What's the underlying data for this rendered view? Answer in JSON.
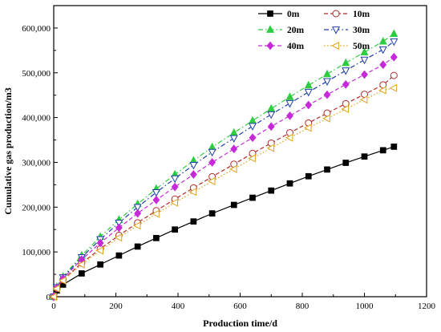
{
  "chart_data": {
    "type": "line",
    "title": "",
    "xlabel": "Production time/d",
    "ylabel": "Cumulative gas production/m3",
    "xlim": [
      0,
      1200
    ],
    "ylim": [
      0,
      650000
    ],
    "xticks": [
      "0",
      "200",
      "400",
      "600",
      "800",
      "1000",
      "1200"
    ],
    "yticks": [
      "0",
      "100,000",
      "200,000",
      "300,000",
      "400,000",
      "500,000",
      "600,000"
    ],
    "grid": false,
    "legend_position": "top-right",
    "x": [
      0,
      10,
      30,
      90,
      150,
      210,
      270,
      330,
      390,
      450,
      510,
      580,
      640,
      700,
      760,
      820,
      880,
      940,
      1000,
      1060,
      1095
    ],
    "series": [
      {
        "name": "0m",
        "color": "#000000",
        "marker": "filled-square",
        "line_style": "solid",
        "values": [
          0,
          14000,
          27000,
          52000,
          72000,
          92000,
          112000,
          131000,
          150000,
          168000,
          186000,
          205000,
          221000,
          237000,
          253000,
          269000,
          284000,
          299000,
          313000,
          327000,
          335000
        ]
      },
      {
        "name": "10m",
        "color": "#b22a2a",
        "marker": "open-circle",
        "line_style": "dashed",
        "values": [
          0,
          19000,
          38000,
          75000,
          107000,
          137000,
          165000,
          192000,
          218000,
          243000,
          268000,
          296000,
          320000,
          343000,
          366000,
          388000,
          410000,
          431000,
          452000,
          473000,
          494000
        ]
      },
      {
        "name": "20m",
        "color": "#2ecc40",
        "marker": "filled-triangle-up",
        "line_style": "dash-dot",
        "values": [
          0,
          22000,
          45000,
          92000,
          134000,
          172000,
          207000,
          241000,
          273000,
          304000,
          334000,
          366000,
          393000,
          420000,
          446000,
          472000,
          497000,
          522000,
          546000,
          570000,
          587000
        ]
      },
      {
        "name": "30m",
        "color": "#1f3fa8",
        "marker": "open-triangle-down",
        "line_style": "dash-dot",
        "values": [
          0,
          21000,
          43000,
          88000,
          128000,
          165000,
          200000,
          233000,
          264000,
          294000,
          323000,
          354000,
          381000,
          407000,
          432000,
          457000,
          481000,
          505000,
          529000,
          552000,
          570000
        ]
      },
      {
        "name": "40m",
        "color": "#c62ad8",
        "marker": "filled-diamond",
        "line_style": "dashed",
        "values": [
          0,
          20000,
          41000,
          83000,
          120000,
          154000,
          186000,
          216000,
          245000,
          273000,
          300000,
          330000,
          355000,
          380000,
          404000,
          428000,
          451000,
          474000,
          496000,
          518000,
          535000
        ]
      },
      {
        "name": "50m",
        "color": "#e0a21a",
        "marker": "open-triangle-left",
        "line_style": "dotted",
        "values": [
          0,
          18000,
          36000,
          72000,
          103000,
          132000,
          159000,
          185000,
          210000,
          234000,
          258000,
          285000,
          309000,
          332000,
          355000,
          377000,
          398000,
          419000,
          440000,
          461000,
          466000
        ]
      }
    ]
  }
}
